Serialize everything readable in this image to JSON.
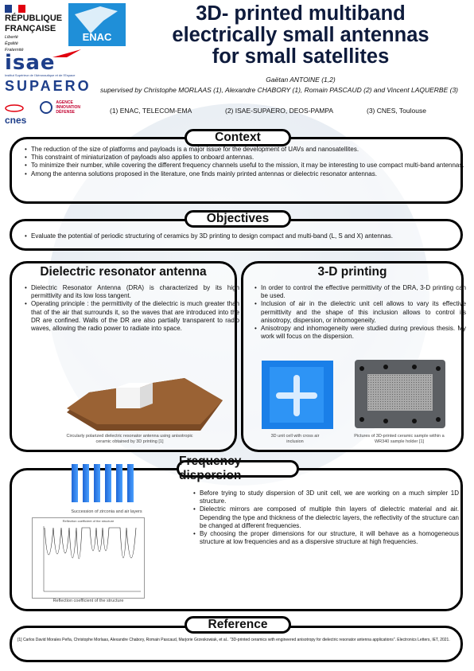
{
  "header": {
    "republique": [
      "RÉPUBLIQUE",
      "FRANÇAISE"
    ],
    "motto": [
      "Liberté",
      "Égalité",
      "Fraternité"
    ],
    "enac": "ENAC",
    "isae": "isae",
    "isae_sub": "Institut Supérieur de l'Aéronautique et de l'Espace",
    "supaero": "SUPAERO",
    "cnes": "cnes",
    "aid": [
      "AGENCE",
      "INNOVATION",
      "DÉFENSE"
    ],
    "title": [
      "3D- printed multiband",
      "electrically small antennas",
      "for small satellites"
    ],
    "author": "Gaëtan ANTOINE (1,2)",
    "supervised": "supervised by Christophe MORLAAS (1), Alexandre CHABORY (1), Romain PASCAUD (2) and Vincent LAQUERBE (3)",
    "affiliations": [
      "(1) ENAC, TELECOM-EMA",
      "(2) ISAE-SUPAERO, DEOS-PAMPA",
      "(3) CNES, Toulouse"
    ]
  },
  "context": {
    "title": "Context",
    "items": [
      "The reduction of the size of platforms and payloads is a major issue for the development of UAVs and nanosatellites.",
      "This constraint of miniaturization of payloads also applies to onboard antennas.",
      "To minimize their number, while covering the different frequency channels useful to the mission, it may be interesting to use compact multi-band antennas.",
      "Among the antenna solutions proposed in the literature, one finds mainly printed antennas or dielectric resonator antennas."
    ]
  },
  "objectives": {
    "title": "Objectives",
    "items": [
      "Evaluate the potential of periodic structuring of ceramics by 3D printing to design compact and multi-band (L, S and X) antennas."
    ]
  },
  "dra": {
    "title": "Dielectric resonator antenna",
    "items": [
      "Dielectric Resonator Antenna (DRA) is characterized by its high permittivity and its low loss tangent.",
      "Operating principle : the permittivity of the dielectric is much greater than that of the air that surrounds it, so the waves that are introduced into the DR are confined. Walls of the DR are also partially transparent to radio waves, allowing the radio power to radiate into space."
    ],
    "caption": "Circularly polarized dielectric resonator antenna using anisotropic ceramic obtained by 3D printing [1]"
  },
  "printing": {
    "title": "3-D printing",
    "items": [
      "In order to control the effective permittivity of the DRA, 3-D printing can be used.",
      "Inclusion of air in the dielectric unit cell allows to vary its effective permittivity and the shape of this inclusion allows to control its anisotropy, dispersion, or inhomogeneity.",
      "Anisotropy and inhomogeneity were studied during previous thesis. My work will focus on the dispersion."
    ],
    "caption_cell": "3D unit cell with cross air inclusion",
    "caption_sample": "Pictures of 3D-printed ceramic sample within a WR340 sample holder [1]"
  },
  "frequency": {
    "title": "Frequency dispersion",
    "caption_layers": "Succession of zirconia and air layers",
    "plot_title": "Reflection coefficient of the structure",
    "caption_plot": "Reflection coefficient of the structure",
    "items": [
      "Before trying to study dispersion of 3D unit cell, we are working on a much simpler 1D structure.",
      "Dielectric mirrors are composed of multiple thin layers of dielectric material and air. Depending the type and thickness of the dielectric layers, the reflectivity of the structure can be changed at different frequencies.",
      "By choosing the proper dimensions for our structure, it will behave as a homogeneous structure at low frequencies and as a dispersive structure at high frequencies."
    ]
  },
  "reference": {
    "title": "Reference",
    "text": "[1] Carlos David Morales Peña, Christophe Morlaas, Alexandre Chabory, Romain Pascaud, Marjorie Grzeskowiak, et al.. \"3D-printed ceramics with engineered anisotropy for dielectric resonator antenna applications\". Electronics Letters, IET, 2021."
  }
}
